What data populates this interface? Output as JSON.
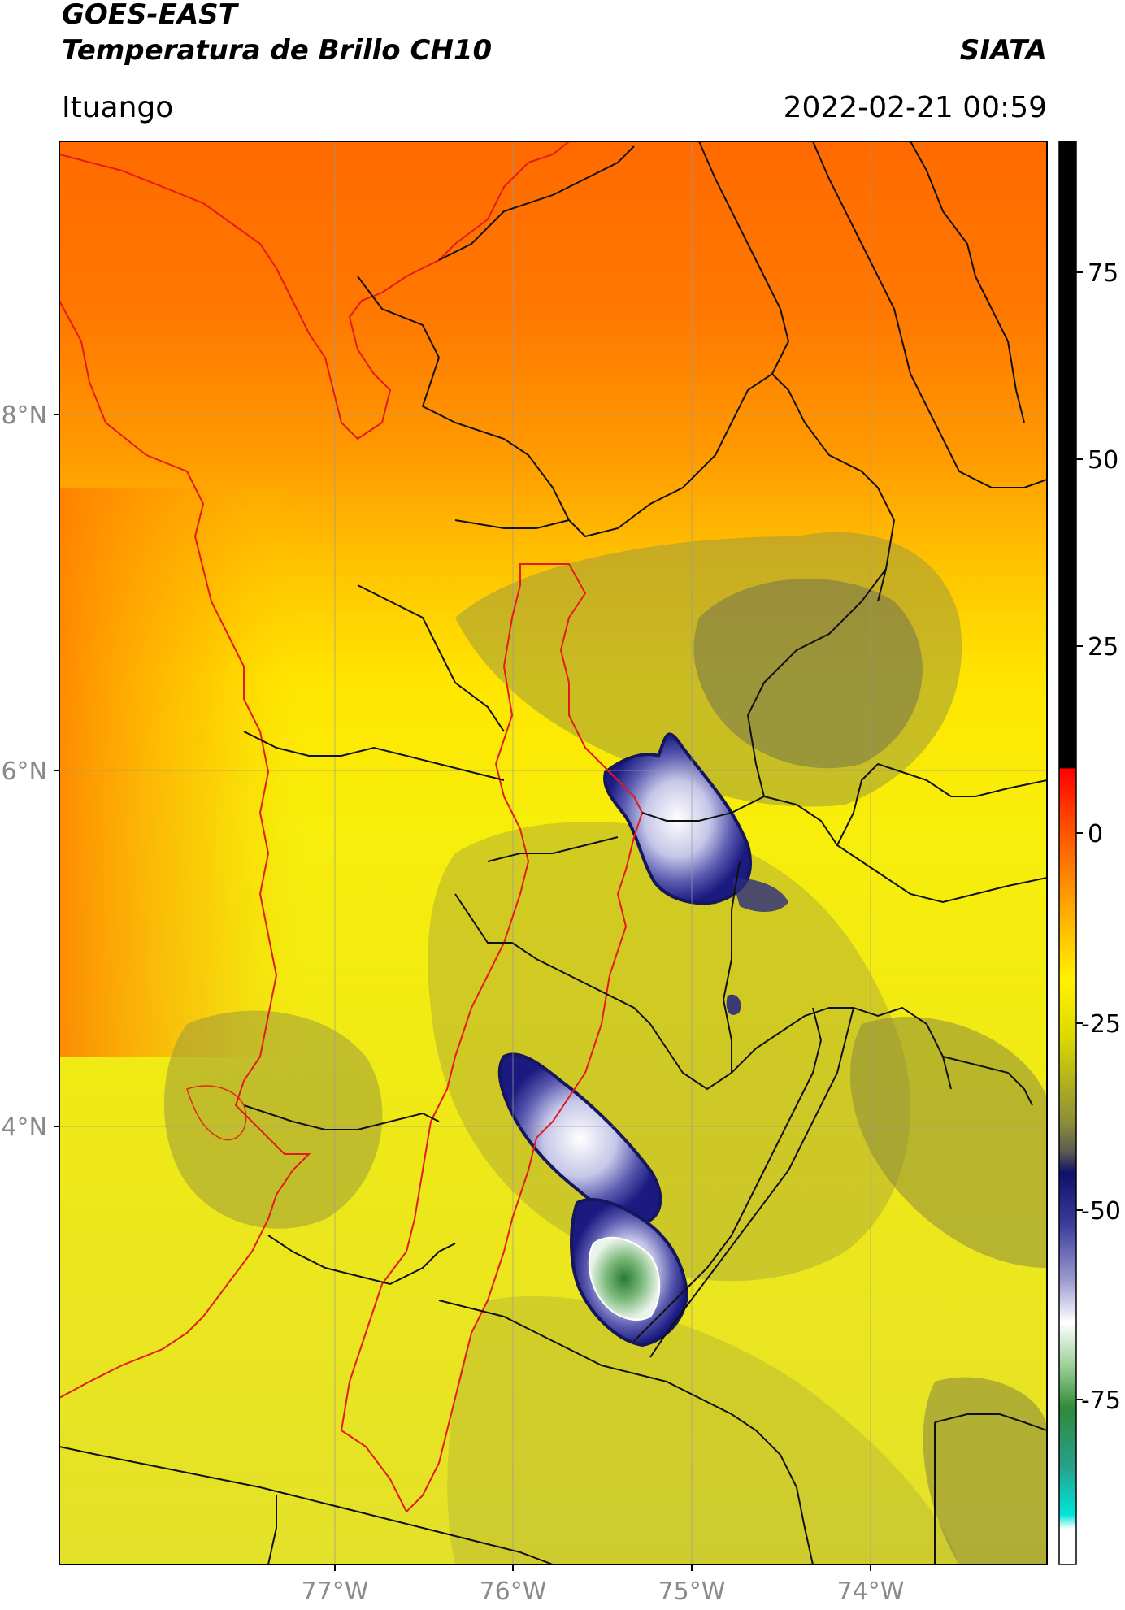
{
  "header": {
    "satellite": "GOES-EAST",
    "product": "Temperatura de Brillo CH10",
    "brand": "SIATA",
    "location": "Ituango",
    "datetime": "2022-02-21 00:59"
  },
  "map": {
    "lat_labels": [
      "8°N",
      "6°N",
      "4°N"
    ],
    "lon_labels": [
      "77°W",
      "76°W",
      "75°W",
      "74°W"
    ],
    "lat_values": [
      8,
      6,
      4
    ],
    "lon_values": [
      -77,
      -76,
      -75,
      -74
    ],
    "extent": {
      "lon_min": -78.55,
      "lon_max": -73.0,
      "lat_min": 1.8,
      "lat_max": 9.55
    }
  },
  "colorbar": {
    "ticks": [
      "75",
      "50",
      "25",
      "0",
      "-25",
      "-50",
      "-75"
    ],
    "tick_values": [
      75,
      50,
      25,
      0,
      -25,
      -50,
      -75
    ],
    "range": [
      -90,
      90
    ],
    "colors": {
      "black": "#000000",
      "red": "#ff1a00",
      "orange": "#ff8a00",
      "yellow": "#fff200",
      "olive": "#8c8c3a",
      "navy": "#101070",
      "white": "#ffffff",
      "green": "#2f8a3a",
      "cyan": "#00e5d8"
    }
  }
}
